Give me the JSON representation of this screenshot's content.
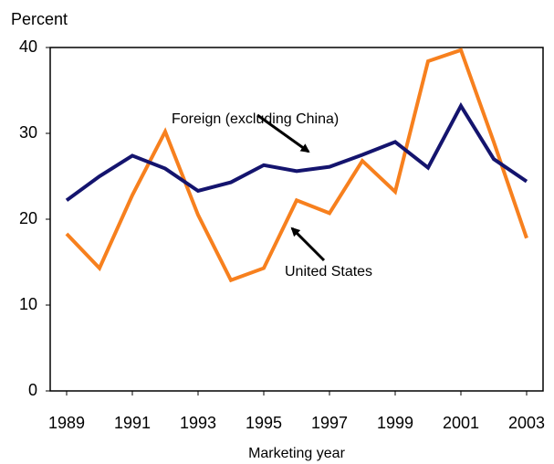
{
  "chart_data": {
    "type": "line",
    "y_label": "Percent",
    "x_label": "Marketing year",
    "x": [
      1989,
      1990,
      1991,
      1992,
      1993,
      1994,
      1995,
      1996,
      1997,
      1998,
      1999,
      2000,
      2001,
      2002,
      2003
    ],
    "series": [
      {
        "name": "Foreign (excluding China)",
        "color": "#14146e",
        "values": [
          22.2,
          25.0,
          27.4,
          25.9,
          23.3,
          24.3,
          26.3,
          25.6,
          26.1,
          27.5,
          29.0,
          26.0,
          33.2,
          27.0,
          24.4
        ]
      },
      {
        "name": "United States",
        "color": "#f7801e",
        "values": [
          18.3,
          14.3,
          22.8,
          30.2,
          20.5,
          12.9,
          14.3,
          22.2,
          20.7,
          26.8,
          23.2,
          38.4,
          39.7,
          29.0,
          17.8
        ]
      }
    ],
    "xlim": [
      1988.5,
      2003.5
    ],
    "xticks": [
      1989,
      1991,
      1993,
      1995,
      1997,
      1999,
      2001,
      2003
    ],
    "ylim": [
      0,
      40
    ],
    "yticks": [
      0,
      10,
      20,
      30,
      40
    ],
    "grid": false
  }
}
